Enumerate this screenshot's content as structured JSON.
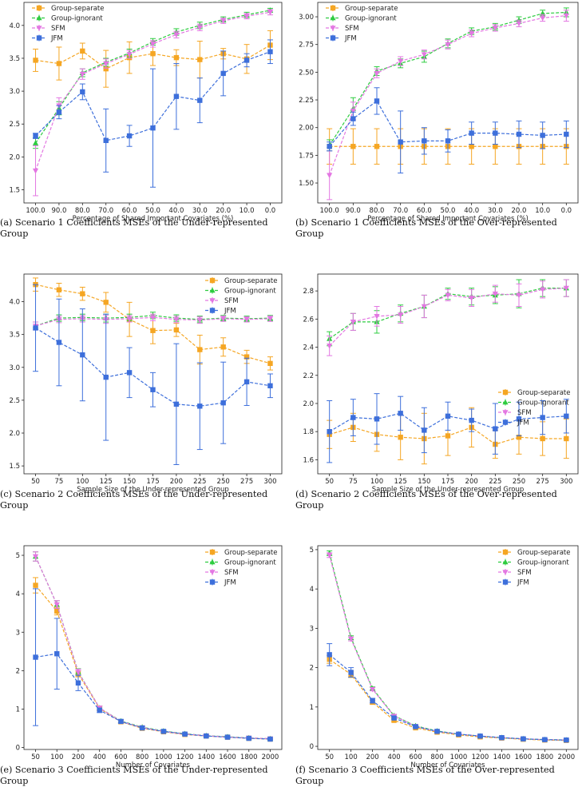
{
  "colors": {
    "Group-separate": "#f5a623",
    "Group-ignorant": "#2ecc40",
    "SFM": "#e377e2",
    "JFM": "#3d6fdb"
  },
  "chart_data": [
    {
      "id": "a",
      "type": "line",
      "caption": "(a) Scenario 1 Coefficients MSEs of the Under-represented Group",
      "xlabel": "Percentage of Shared Important Covariates (%)",
      "ylabel": "",
      "categories": [
        "100.0",
        "90.0",
        "80.0",
        "70.0",
        "60.0",
        "50.0",
        "40.0",
        "30.0",
        "20.0",
        "10.0",
        "0.0"
      ],
      "ylim": [
        1.3,
        4.35
      ],
      "yticks": [
        "1.5",
        "2.0",
        "2.5",
        "3.0",
        "3.5",
        "4.0"
      ],
      "legend": "top-left",
      "series": [
        {
          "name": "Group-separate",
          "values": [
            3.47,
            3.42,
            3.61,
            3.34,
            3.51,
            3.57,
            3.51,
            3.48,
            3.57,
            3.49,
            3.7
          ],
          "err": [
            0.17,
            0.25,
            0.12,
            0.28,
            0.24,
            0.18,
            0.12,
            0.28,
            0.08,
            0.22,
            0.22
          ]
        },
        {
          "name": "Group-ignorant",
          "values": [
            2.21,
            2.74,
            3.28,
            3.44,
            3.58,
            3.75,
            3.9,
            4.0,
            4.09,
            4.16,
            4.23
          ],
          "err": [
            0.08,
            0.1,
            0.06,
            0.06,
            0.06,
            0.05,
            0.05,
            0.05,
            0.04,
            0.04,
            0.03
          ]
        },
        {
          "name": "SFM",
          "values": [
            1.79,
            2.78,
            3.26,
            3.42,
            3.56,
            3.72,
            3.86,
            3.97,
            4.07,
            4.14,
            4.2
          ],
          "err": [
            0.38,
            0.12,
            0.08,
            0.07,
            0.06,
            0.05,
            0.05,
            0.05,
            0.04,
            0.04,
            0.04
          ]
        },
        {
          "name": "JFM",
          "values": [
            2.32,
            2.68,
            2.99,
            2.25,
            2.32,
            2.44,
            2.92,
            2.86,
            3.27,
            3.47,
            3.6
          ],
          "err": [
            0.04,
            0.1,
            0.12,
            0.48,
            0.16,
            0.9,
            0.5,
            0.34,
            0.34,
            0.1,
            0.18
          ]
        }
      ]
    },
    {
      "id": "b",
      "type": "line",
      "caption": "(b) Scenario 1 Coefficients MSEs of the Over-represented Group",
      "xlabel": "Percentage of Shared Important Covariates (%)",
      "ylabel": "",
      "categories": [
        "100.0",
        "90.0",
        "80.0",
        "70.0",
        "60.0",
        "50.0",
        "40.0",
        "30.0",
        "20.0",
        "10.0",
        "0.0"
      ],
      "ylim": [
        1.32,
        3.13
      ],
      "yticks": [
        "1.50",
        "1.75",
        "2.00",
        "2.25",
        "2.50",
        "2.75",
        "3.00"
      ],
      "legend": "top-left",
      "series": [
        {
          "name": "Group-separate",
          "values": [
            1.83,
            1.83,
            1.83,
            1.83,
            1.83,
            1.83,
            1.83,
            1.83,
            1.83,
            1.83,
            1.83
          ],
          "err": [
            0.16,
            0.16,
            0.16,
            0.16,
            0.16,
            0.16,
            0.16,
            0.16,
            0.16,
            0.16,
            0.16
          ]
        },
        {
          "name": "Group-ignorant",
          "values": [
            1.84,
            2.17,
            2.51,
            2.58,
            2.64,
            2.76,
            2.87,
            2.91,
            2.97,
            3.03,
            3.04
          ],
          "err": [
            0.05,
            0.1,
            0.04,
            0.04,
            0.05,
            0.04,
            0.03,
            0.03,
            0.03,
            0.03,
            0.04
          ]
        },
        {
          "name": "SFM",
          "values": [
            1.57,
            2.15,
            2.49,
            2.6,
            2.66,
            2.75,
            2.85,
            2.9,
            2.94,
            2.99,
            3.01
          ],
          "err": [
            0.22,
            0.08,
            0.04,
            0.04,
            0.04,
            0.04,
            0.03,
            0.03,
            0.03,
            0.03,
            0.05
          ]
        },
        {
          "name": "JFM",
          "values": [
            1.83,
            2.08,
            2.24,
            1.87,
            1.88,
            1.88,
            1.95,
            1.95,
            1.94,
            1.93,
            1.94
          ],
          "err": [
            0.04,
            0.06,
            0.12,
            0.28,
            0.12,
            0.1,
            0.1,
            0.1,
            0.12,
            0.12,
            0.12
          ]
        }
      ]
    },
    {
      "id": "c",
      "type": "line",
      "caption": "(c) Scenario 2 Coefficients MSEs of the Under-represented Group",
      "xlabel": "Sample Size of the Under-represented Group",
      "ylabel": "",
      "categories": [
        "50",
        "75",
        "100",
        "125",
        "150",
        "175",
        "200",
        "225",
        "250",
        "275",
        "300"
      ],
      "ylim": [
        1.38,
        4.42
      ],
      "yticks": [
        "1.5",
        "2.0",
        "2.5",
        "3.0",
        "3.5",
        "4.0"
      ],
      "legend": "top-right",
      "series": [
        {
          "name": "Group-separate",
          "values": [
            4.26,
            4.18,
            4.12,
            3.99,
            3.73,
            3.56,
            3.57,
            3.27,
            3.31,
            3.16,
            3.06
          ],
          "err": [
            0.1,
            0.1,
            0.1,
            0.15,
            0.26,
            0.2,
            0.1,
            0.22,
            0.14,
            0.1,
            0.1
          ]
        },
        {
          "name": "Group-ignorant",
          "values": [
            3.63,
            3.75,
            3.76,
            3.75,
            3.76,
            3.79,
            3.75,
            3.73,
            3.75,
            3.74,
            3.75
          ],
          "err": [
            0.06,
            0.05,
            0.05,
            0.06,
            0.05,
            0.05,
            0.05,
            0.05,
            0.04,
            0.04,
            0.04
          ]
        },
        {
          "name": "SFM",
          "values": [
            3.63,
            3.73,
            3.74,
            3.73,
            3.74,
            3.76,
            3.73,
            3.72,
            3.74,
            3.73,
            3.74
          ],
          "err": [
            0.06,
            0.05,
            0.05,
            0.06,
            0.05,
            0.05,
            0.05,
            0.05,
            0.04,
            0.04,
            0.04
          ]
        },
        {
          "name": "JFM",
          "values": [
            3.6,
            3.38,
            3.19,
            2.85,
            2.92,
            2.66,
            2.44,
            2.41,
            2.46,
            2.78,
            2.72
          ],
          "err": [
            0.66,
            0.66,
            0.7,
            0.96,
            0.38,
            0.26,
            0.92,
            0.66,
            0.62,
            0.36,
            0.18
          ]
        }
      ]
    },
    {
      "id": "d",
      "type": "line",
      "caption": "(d) Scenario 2 Coefficients MSEs of the Over-represented Group",
      "xlabel": "Sample Size of the Under-represented Group",
      "ylabel": "",
      "categories": [
        "50",
        "75",
        "100",
        "125",
        "150",
        "175",
        "200",
        "225",
        "250",
        "275",
        "300"
      ],
      "ylim": [
        1.5,
        2.92
      ],
      "yticks": [
        "1.6",
        "1.8",
        "2.0",
        "2.2",
        "2.4",
        "2.6",
        "2.8"
      ],
      "legend": "center-right",
      "series": [
        {
          "name": "Group-separate",
          "values": [
            1.78,
            1.83,
            1.78,
            1.76,
            1.75,
            1.77,
            1.83,
            1.71,
            1.76,
            1.75,
            1.75
          ],
          "err": [
            0.1,
            0.1,
            0.12,
            0.16,
            0.18,
            0.14,
            0.14,
            0.1,
            0.12,
            0.12,
            0.14
          ]
        },
        {
          "name": "Group-ignorant",
          "values": [
            2.46,
            2.58,
            2.58,
            2.64,
            2.69,
            2.78,
            2.76,
            2.77,
            2.78,
            2.82,
            2.82
          ],
          "err": [
            0.05,
            0.06,
            0.08,
            0.06,
            0.08,
            0.04,
            0.06,
            0.06,
            0.1,
            0.06,
            0.06
          ]
        },
        {
          "name": "SFM",
          "values": [
            2.41,
            2.58,
            2.62,
            2.63,
            2.69,
            2.77,
            2.75,
            2.78,
            2.77,
            2.81,
            2.82
          ],
          "err": [
            0.07,
            0.06,
            0.07,
            0.06,
            0.08,
            0.04,
            0.06,
            0.06,
            0.08,
            0.06,
            0.06
          ]
        },
        {
          "name": "JFM",
          "values": [
            1.8,
            1.9,
            1.89,
            1.93,
            1.81,
            1.91,
            1.88,
            1.82,
            1.89,
            1.9,
            1.91
          ],
          "err": [
            0.22,
            0.13,
            0.18,
            0.12,
            0.16,
            0.1,
            0.08,
            0.18,
            0.12,
            0.12,
            0.12
          ]
        }
      ]
    },
    {
      "id": "e",
      "type": "line",
      "caption": "(e) Scenario 3 Coefficients MSEs of the Under-represented Group",
      "xlabel": "Number of Covariates",
      "ylabel": "",
      "categories": [
        "50",
        "100",
        "200",
        "400",
        "600",
        "800",
        "1000",
        "1200",
        "1400",
        "1600",
        "1800",
        "2000"
      ],
      "ylim": [
        -0.05,
        5.25
      ],
      "yticks": [
        "0",
        "1",
        "2",
        "3",
        "4",
        "5"
      ],
      "legend": "top-right",
      "series": [
        {
          "name": "Group-separate",
          "values": [
            4.22,
            3.55,
            1.92,
            1.02,
            0.67,
            0.5,
            0.41,
            0.34,
            0.3,
            0.27,
            0.24,
            0.22
          ],
          "err": [
            0.2,
            0.1,
            0.08,
            0.06,
            0.04,
            0.03,
            0.03,
            0.02,
            0.02,
            0.02,
            0.02,
            0.02
          ]
        },
        {
          "name": "Group-ignorant",
          "values": [
            4.97,
            3.72,
            1.97,
            1.03,
            0.69,
            0.53,
            0.43,
            0.36,
            0.31,
            0.28,
            0.25,
            0.23
          ],
          "err": [
            0.12,
            0.1,
            0.08,
            0.05,
            0.04,
            0.03,
            0.03,
            0.02,
            0.02,
            0.02,
            0.02,
            0.02
          ]
        },
        {
          "name": "SFM",
          "values": [
            4.97,
            3.72,
            1.96,
            1.03,
            0.68,
            0.52,
            0.42,
            0.35,
            0.31,
            0.27,
            0.25,
            0.23
          ],
          "err": [
            0.12,
            0.1,
            0.08,
            0.05,
            0.04,
            0.03,
            0.03,
            0.02,
            0.02,
            0.02,
            0.02,
            0.02
          ]
        },
        {
          "name": "JFM",
          "values": [
            2.35,
            2.44,
            1.68,
            0.97,
            0.68,
            0.51,
            0.42,
            0.35,
            0.3,
            0.27,
            0.24,
            0.22
          ],
          "err": [
            1.78,
            0.92,
            0.2,
            0.06,
            0.04,
            0.03,
            0.03,
            0.02,
            0.02,
            0.02,
            0.02,
            0.02
          ]
        }
      ]
    },
    {
      "id": "f",
      "type": "line",
      "caption": "(f) Scenario 3 Coefficients MSEs of the Over-represented Group",
      "xlabel": "Number of Covariates",
      "ylabel": "",
      "categories": [
        "50",
        "100",
        "200",
        "400",
        "600",
        "800",
        "1000",
        "1200",
        "1400",
        "1600",
        "1800",
        "2000"
      ],
      "ylim": [
        -0.08,
        5.1
      ],
      "yticks": [
        "0",
        "1",
        "2",
        "3",
        "4",
        "5"
      ],
      "legend": "top-right",
      "series": [
        {
          "name": "Group-separate",
          "values": [
            2.21,
            1.83,
            1.12,
            0.66,
            0.47,
            0.36,
            0.29,
            0.24,
            0.21,
            0.18,
            0.16,
            0.15
          ],
          "err": [
            0.1,
            0.08,
            0.05,
            0.03,
            0.02,
            0.02,
            0.02,
            0.02,
            0.02,
            0.02,
            0.02,
            0.02
          ]
        },
        {
          "name": "Group-ignorant",
          "values": [
            4.91,
            2.76,
            1.47,
            0.78,
            0.52,
            0.39,
            0.31,
            0.26,
            0.22,
            0.19,
            0.17,
            0.16
          ],
          "err": [
            0.06,
            0.05,
            0.04,
            0.03,
            0.02,
            0.02,
            0.02,
            0.02,
            0.02,
            0.02,
            0.02,
            0.02
          ]
        },
        {
          "name": "SFM",
          "values": [
            4.86,
            2.73,
            1.45,
            0.77,
            0.51,
            0.38,
            0.31,
            0.26,
            0.22,
            0.19,
            0.17,
            0.16
          ],
          "err": [
            0.06,
            0.05,
            0.04,
            0.03,
            0.02,
            0.02,
            0.02,
            0.02,
            0.02,
            0.02,
            0.02,
            0.02
          ]
        },
        {
          "name": "JFM",
          "values": [
            2.33,
            1.88,
            1.16,
            0.72,
            0.5,
            0.38,
            0.31,
            0.26,
            0.22,
            0.19,
            0.17,
            0.16
          ],
          "err": [
            0.28,
            0.12,
            0.06,
            0.03,
            0.02,
            0.02,
            0.02,
            0.02,
            0.02,
            0.02,
            0.02,
            0.02
          ]
        }
      ]
    }
  ]
}
